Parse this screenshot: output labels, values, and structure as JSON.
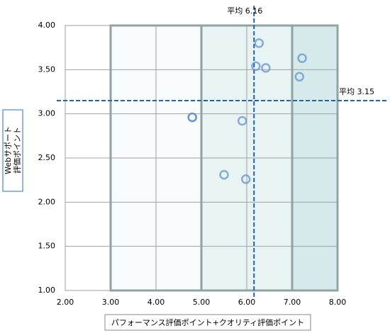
{
  "chart_data": {
    "type": "scatter",
    "xlabel": "パフォーマンス評価ポイント+クオリティ評価ポイント",
    "ylabel": [
      "Webサポート",
      "評価ポイント"
    ],
    "x": [
      6.27,
      6.2,
      6.42,
      7.22,
      7.16,
      5.9,
      4.8,
      4.8,
      5.5,
      5.98
    ],
    "series": [
      {
        "color": "#5b8fc9",
        "values": [
          3.8,
          3.54,
          3.52,
          3.63,
          3.42,
          2.92,
          2.96,
          2.96,
          2.31,
          2.26
        ]
      }
    ],
    "xlim": [
      2,
      8
    ],
    "ylim": [
      1,
      4
    ],
    "xticks": [
      {
        "value": 2,
        "label": "2.00"
      },
      {
        "value": 3,
        "label": "3.00"
      },
      {
        "value": 4,
        "label": "4.00"
      },
      {
        "value": 5,
        "label": "5.00"
      },
      {
        "value": 6,
        "label": "6.00"
      },
      {
        "value": 7,
        "label": "7.00"
      },
      {
        "value": 8,
        "label": "8.00"
      }
    ],
    "yticks": [
      {
        "value": 1,
        "label": "1.00"
      },
      {
        "value": 1.5,
        "label": "1.50"
      },
      {
        "value": 2,
        "label": "2.00"
      },
      {
        "value": 2.5,
        "label": "2.50"
      },
      {
        "value": 3,
        "label": "3.00"
      },
      {
        "value": 3.5,
        "label": "3.50"
      },
      {
        "value": 4,
        "label": "4.00"
      }
    ],
    "grid": true,
    "bands": [
      {
        "from": 3,
        "to": 5,
        "color": "#f7fbfb"
      },
      {
        "from": 5,
        "to": 7,
        "color": "#e8f3f4"
      },
      {
        "from": 7,
        "to": 8,
        "color": "#d6eaec"
      }
    ],
    "mean_lines": [
      {
        "axis": "x",
        "value": 6.16,
        "label": "平均 6.16"
      },
      {
        "axis": "y",
        "value": 3.15,
        "label": "平均 3.15"
      }
    ]
  }
}
